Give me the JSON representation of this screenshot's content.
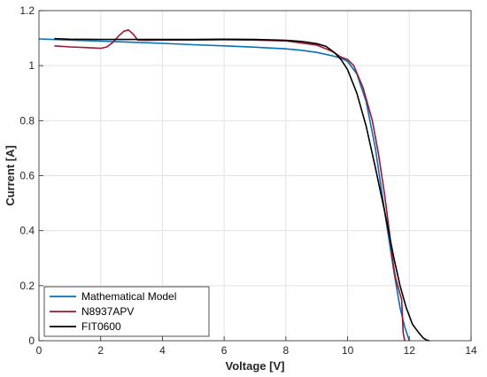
{
  "chart_data": {
    "type": "line",
    "xlabel": "Voltage [V]",
    "ylabel": "Current [A]",
    "xlim": [
      0,
      14
    ],
    "ylim": [
      0,
      1.2
    ],
    "xticks": [
      "0",
      "2",
      "4",
      "6",
      "8",
      "10",
      "12",
      "14"
    ],
    "yticks": [
      "0",
      "0.2",
      "0.4",
      "0.6",
      "0.8",
      "1",
      "1.2"
    ],
    "grid": true,
    "legend_position": "bottom-left",
    "series": [
      {
        "name": "Mathematical Model",
        "color": "#0072BD",
        "x": [
          0,
          1,
          2,
          3,
          4,
          5,
          6,
          7,
          8,
          8.5,
          9,
          9.5,
          9.8,
          10,
          10.3,
          10.6,
          10.9,
          11.2,
          11.5,
          11.7,
          11.85,
          12
        ],
        "y": [
          1.097,
          1.093,
          1.089,
          1.085,
          1.081,
          1.076,
          1.072,
          1.067,
          1.061,
          1.056,
          1.048,
          1.036,
          1.027,
          1.015,
          0.97,
          0.87,
          0.7,
          0.47,
          0.25,
          0.12,
          0.05,
          0
        ]
      },
      {
        "name": "N8937APV",
        "color": "#A2142F",
        "x": [
          0.5,
          1.0,
          1.5,
          2.0,
          2.2,
          2.4,
          2.6,
          2.75,
          2.9,
          3.05,
          3.2,
          3.5,
          4,
          5,
          6,
          7,
          8,
          9,
          9.5,
          9.8,
          10.0,
          10.2,
          10.5,
          10.8,
          11.0,
          11.2,
          11.35,
          11.45,
          11.55,
          11.7,
          11.75,
          11.8,
          11.85
        ],
        "y": [
          1.072,
          1.068,
          1.066,
          1.063,
          1.068,
          1.085,
          1.11,
          1.125,
          1.13,
          1.115,
          1.093,
          1.092,
          1.093,
          1.093,
          1.094,
          1.093,
          1.09,
          1.075,
          1.052,
          1.03,
          1.022,
          1.0,
          0.92,
          0.8,
          0.68,
          0.53,
          0.4,
          0.3,
          0.23,
          0.17,
          0.15,
          0.03,
          0
        ]
      },
      {
        "name": "FIT0600",
        "color": "#000000",
        "x": [
          0.5,
          1,
          2,
          3,
          4,
          5,
          6,
          7,
          8,
          8.5,
          9,
          9.3,
          9.6,
          9.8,
          10.0,
          10.3,
          10.6,
          10.9,
          11.2,
          11.5,
          11.7,
          11.9,
          12.1,
          12.3,
          12.45,
          12.55,
          12.65
        ],
        "y": [
          1.098,
          1.096,
          1.095,
          1.095,
          1.095,
          1.095,
          1.096,
          1.095,
          1.092,
          1.088,
          1.08,
          1.07,
          1.045,
          1.02,
          0.985,
          0.9,
          0.78,
          0.63,
          0.47,
          0.3,
          0.2,
          0.12,
          0.06,
          0.03,
          0.01,
          0.003,
          0
        ]
      }
    ]
  }
}
